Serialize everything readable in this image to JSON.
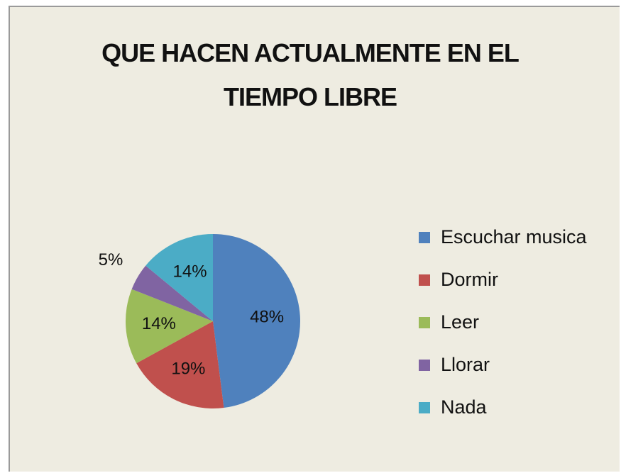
{
  "chart_data": {
    "type": "pie",
    "title": "QUE HACEN ACTUALMENTE EN EL TIEMPO LIBRE",
    "categories": [
      "Escuchar musica",
      "Dormir",
      "Leer",
      "Llorar",
      "Nada"
    ],
    "values": [
      48,
      19,
      14,
      5,
      14
    ],
    "value_labels": [
      "48%",
      "19%",
      "14%",
      "5%",
      "14%"
    ],
    "colors": [
      "#4f81bd",
      "#c0504d",
      "#9bbb59",
      "#8064a2",
      "#4bacc6"
    ],
    "legend": "right"
  }
}
